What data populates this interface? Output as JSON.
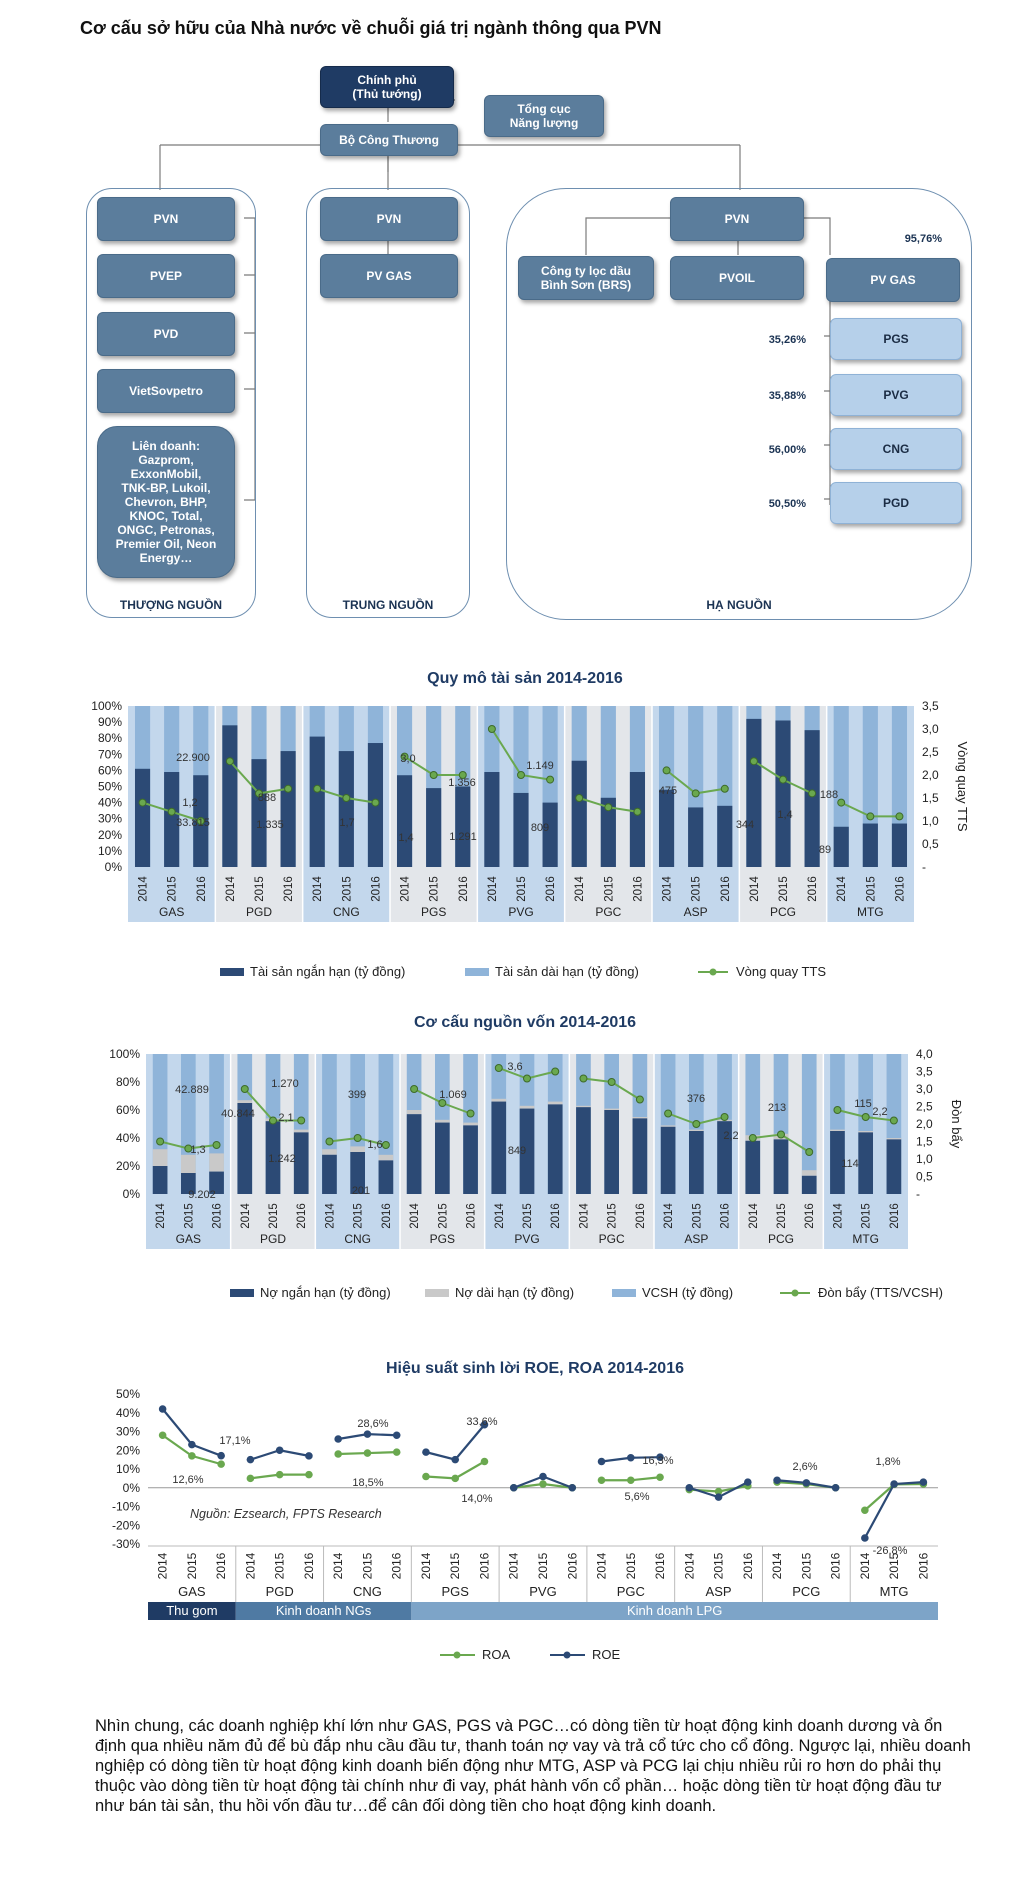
{
  "page_title": "Cơ cấu sở hữu của Nhà nước về chuỗi giá trị ngành thông qua PVN",
  "org": {
    "government": "Chính phủ\n(Thủ tướng)",
    "energy_dept": "Tổng cục\nNăng lượng",
    "ministry": "Bộ Công Thương",
    "upstream": {
      "label": "THƯỢNG NGUỒN",
      "items": [
        "PVN",
        "PVEP",
        "PVD",
        "VietSovpetro",
        "Liên doanh:\nGazprom,\nExxonMobil,\nTNK-BP, Lukoil,\nChevron, BHP,\nKNOC, Total,\nONGC, Petronas,\nPremier Oil, Neon\nEnergy…"
      ]
    },
    "midstream": {
      "label": "TRUNG NGUỒN",
      "items": [
        "PVN",
        "PV GAS"
      ]
    },
    "downstream": {
      "label": "HẠ NGUỒN",
      "pvn": "PVN",
      "brs": "Công ty lọc dầu\nBình Sơn (BRS)",
      "pvoil": "PVOIL",
      "pvgas": "PV GAS",
      "pvgas_pct": "95,76%",
      "subs": [
        {
          "name": "PGS",
          "pct": "35,26%"
        },
        {
          "name": "PVG",
          "pct": "35,88%"
        },
        {
          "name": "CNG",
          "pct": "56,00%"
        },
        {
          "name": "PGD",
          "pct": "50,50%"
        }
      ]
    }
  },
  "chart_data": [
    {
      "type": "bar",
      "title": "Quy mô tài sản 2014-2016",
      "groups": [
        "GAS",
        "PGD",
        "CNG",
        "PGS",
        "PVG",
        "PGC",
        "ASP",
        "PCG",
        "MTG"
      ],
      "years": [
        "2014",
        "2015",
        "2016"
      ],
      "y_left_ticks": [
        "100%",
        "90%",
        "80%",
        "70%",
        "60%",
        "50%",
        "40%",
        "30%",
        "20%",
        "10%",
        "0%"
      ],
      "y_right_ticks": [
        "3,5",
        "3,0",
        "2,5",
        "2,0",
        "1,5",
        "1,0",
        "0,5",
        "-"
      ],
      "ylabel_right": "Vòng quay TTS",
      "ylim_right": [
        0,
        3.5
      ],
      "legend": [
        "Tài sản ngắn hạn (tỷ đồng)",
        "Tài sản dài hạn (tỷ đồng)",
        "Vòng quay TTS"
      ],
      "series": [
        {
          "name": "Tài sản ngắn hạn (tỷ đồng)",
          "values": [
            61,
            59,
            57,
            88,
            67,
            72,
            81,
            72,
            77,
            57,
            49,
            50,
            59,
            46,
            40,
            66,
            43,
            59,
            48,
            37,
            38,
            92,
            91,
            85,
            25,
            27,
            27
          ]
        },
        {
          "name": "Vòng quay TTS",
          "values": [
            1.4,
            1.2,
            1.0,
            2.3,
            1.6,
            1.7,
            1.7,
            1.5,
            1.4,
            2.4,
            2.0,
            2.0,
            3.0,
            2.0,
            1.9,
            1.5,
            1.3,
            1.2,
            2.1,
            1.6,
            1.7,
            2.3,
            1.9,
            1.6,
            1.4,
            1.1,
            1.1
          ]
        }
      ],
      "annotations": [
        "22.900",
        "33.815",
        "1,2",
        "888",
        "1.335",
        "1,7",
        "1,4",
        "1.356",
        "1.291",
        "3,0",
        "1.149",
        "809",
        "475",
        "344",
        "188",
        "1,4",
        "89"
      ]
    },
    {
      "type": "bar",
      "title": "Cơ cấu nguồn vốn 2014-2016",
      "groups": [
        "GAS",
        "PGD",
        "CNG",
        "PGS",
        "PVG",
        "PGC",
        "ASP",
        "PCG",
        "MTG"
      ],
      "years": [
        "2014",
        "2015",
        "2016"
      ],
      "y_left_ticks": [
        "100%",
        "80%",
        "60%",
        "40%",
        "20%",
        "0%"
      ],
      "y_right_ticks": [
        "4,0",
        "3,5",
        "3,0",
        "2,5",
        "2,0",
        "1,5",
        "1,0",
        "0,5",
        "-"
      ],
      "ylabel_right": "Đòn bẩy",
      "ylim_right": [
        0,
        4.0
      ],
      "legend": [
        "Nợ ngắn hạn (tỷ đồng)",
        "Nợ dài hạn (tỷ đồng)",
        "VCSH (tỷ đồng)",
        "Đòn bẩy (TTS/VCSH)"
      ],
      "series": [
        {
          "name": "Nợ ngắn hạn (tỷ đồng)",
          "values": [
            20,
            15,
            16,
            65,
            52,
            44,
            28,
            30,
            24,
            57,
            51,
            49,
            66,
            61,
            64,
            62,
            60,
            54,
            48,
            45,
            52,
            38,
            39,
            13,
            45,
            44,
            39
          ]
        },
        {
          "name": "Nợ dài hạn (tỷ đồng)",
          "values": [
            12,
            13,
            13,
            2,
            2,
            2,
            4,
            4,
            4,
            3,
            2,
            2,
            2,
            2,
            2,
            1,
            1,
            1,
            1,
            1,
            1,
            4,
            4,
            4,
            1,
            1,
            1
          ]
        },
        {
          "name": "Đòn bẩy (TTS/VCSH)",
          "values": [
            1.5,
            1.3,
            1.4,
            3.0,
            2.1,
            2.1,
            1.5,
            1.6,
            1.4,
            3.0,
            2.6,
            2.3,
            3.6,
            3.3,
            3.5,
            3.3,
            3.2,
            2.7,
            2.3,
            2.0,
            2.2,
            1.6,
            1.7,
            1.2,
            2.4,
            2.2,
            2.1
          ]
        }
      ],
      "annotations": [
        "42.889",
        "40.844",
        "9.202",
        "1,3",
        "1.270",
        "1.242",
        "2,1",
        "399",
        "201",
        "1,6",
        "1.069",
        "3,6",
        "849",
        "376",
        "2,2",
        "213",
        "115",
        "114",
        "2,2"
      ]
    },
    {
      "type": "line",
      "title": "Hiệu suất sinh lời ROE, ROA 2014-2016",
      "groups": [
        "GAS",
        "PGD",
        "CNG",
        "PGS",
        "PVG",
        "PGC",
        "ASP",
        "PCG",
        "MTG"
      ],
      "years": [
        "2014",
        "2015",
        "2016"
      ],
      "y_ticks": [
        "50%",
        "40%",
        "30%",
        "20%",
        "10%",
        "0%",
        "-10%",
        "-20%",
        "-30%"
      ],
      "ylim": [
        -30,
        50
      ],
      "segments": [
        "Thu gom",
        "Kinh doanh NGs",
        "Kinh doanh LPG"
      ],
      "source_note": "Nguồn: Ezsearch, FPTS Research",
      "legend": [
        "ROA",
        "ROE"
      ],
      "series": [
        {
          "name": "ROA",
          "values": [
            28,
            17,
            12.6,
            5,
            7,
            7,
            18,
            18.5,
            19,
            6,
            5,
            14,
            0,
            2,
            0,
            4,
            4,
            5.6,
            -1,
            -2,
            1,
            3,
            2,
            0,
            -12,
            1.8,
            2
          ]
        },
        {
          "name": "ROE",
          "values": [
            42,
            23,
            17.1,
            15,
            20,
            17,
            26,
            28.6,
            28,
            19,
            15,
            33.6,
            0,
            6,
            0,
            14,
            16,
            16.3,
            0,
            -5,
            3,
            4,
            2.6,
            0,
            -26.8,
            2,
            3
          ]
        }
      ],
      "annotations": [
        "17,1%",
        "12,6%",
        "28,6%",
        "18,5%",
        "33,6%",
        "14,0%",
        "16,3%",
        "5,6%",
        "2,6%",
        "1,8%",
        "-26,8%"
      ]
    }
  ],
  "conclusion": "Nhìn chung, các doanh nghiệp khí lớn như GAS, PGS và PGC…có dòng tiền từ hoạt động kinh doanh dương và ổn định qua nhiều năm đủ để bù đắp nhu cầu đầu tư, thanh toán nợ vay và trả cổ tức cho cổ đông. Ngược lại, nhiều doanh nghiệp có dòng tiền từ hoạt động kinh doanh biến động như MTG, ASP và PCG lại chịu nhiều rủi ro hơn do phải thụ thuộc vào dòng tiền từ hoạt động tài chính như đi vay, phát hành vốn cổ phần… hoặc dòng tiền từ hoạt động đầu tư như bán tài sản, thu hồi vốn đầu tư…để cân đối dòng tiền cho hoạt động kinh doanh.",
  "colors": {
    "navy": "#2c4a75",
    "light_blue": "#8fb4d9",
    "grey": "#c9c9c9",
    "green": "#6aa84f",
    "band_blue": "#c3d7ec",
    "band_grey": "#e3e6ea",
    "dark_header": "#1f3b64"
  }
}
